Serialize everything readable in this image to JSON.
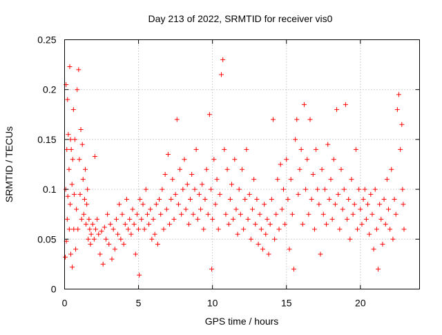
{
  "chart_data": {
    "type": "scatter",
    "title": "Day 213 of 2022, SRMTID for receiver vis0",
    "xlabel": "GPS time / hours",
    "ylabel": "SRMTID / TECUs",
    "xlim": [
      0,
      24
    ],
    "ylim": [
      0,
      0.25
    ],
    "x_ticks": [
      0,
      5,
      10,
      15,
      20
    ],
    "x_tick_labels": [
      "0",
      "5",
      "10",
      "15",
      "20"
    ],
    "y_ticks": [
      0,
      0.05,
      0.1,
      0.15,
      0.2,
      0.25
    ],
    "y_tick_labels": [
      "0",
      "0.05",
      "0.1",
      "0.15",
      "0.2",
      "0.25"
    ],
    "grid": true,
    "marker": "+",
    "color": "#ff0000",
    "series": [
      {
        "name": "vis0",
        "points": [
          [
            0.05,
            0.032
          ],
          [
            0.08,
            0.1
          ],
          [
            0.1,
            0.205
          ],
          [
            0.12,
            0.048
          ],
          [
            0.15,
            0.14
          ],
          [
            0.18,
            0.07
          ],
          [
            0.2,
            0.19
          ],
          [
            0.22,
            0.093
          ],
          [
            0.25,
            0.155
          ],
          [
            0.3,
            0.12
          ],
          [
            0.32,
            0.06
          ],
          [
            0.35,
            0.223
          ],
          [
            0.38,
            0.085
          ],
          [
            0.4,
            0.15
          ],
          [
            0.42,
            0.035
          ],
          [
            0.45,
            0.14
          ],
          [
            0.5,
            0.105
          ],
          [
            0.52,
            0.022
          ],
          [
            0.55,
            0.13
          ],
          [
            0.6,
            0.18
          ],
          [
            0.62,
            0.06
          ],
          [
            0.65,
            0.095
          ],
          [
            0.7,
            0.15
          ],
          [
            0.75,
            0.04
          ],
          [
            0.8,
            0.08
          ],
          [
            0.85,
            0.2
          ],
          [
            0.9,
            0.06
          ],
          [
            0.95,
            0.22
          ],
          [
            1.0,
            0.13
          ],
          [
            1.05,
            0.095
          ],
          [
            1.1,
            0.16
          ],
          [
            1.15,
            0.07
          ],
          [
            1.2,
            0.145
          ],
          [
            1.25,
            0.11
          ],
          [
            1.3,
            0.075
          ],
          [
            1.35,
            0.09
          ],
          [
            1.4,
            0.12
          ],
          [
            1.45,
            0.065
          ],
          [
            1.5,
            0.085
          ],
          [
            1.55,
            0.1
          ],
          [
            1.6,
            0.05
          ],
          [
            1.65,
            0.07
          ],
          [
            1.7,
            0.06
          ],
          [
            1.75,
            0.045
          ],
          [
            1.8,
            0.055
          ],
          [
            1.9,
            0.065
          ],
          [
            2.0,
            0.05
          ],
          [
            2.05,
            0.133
          ],
          [
            2.1,
            0.06
          ],
          [
            2.2,
            0.07
          ],
          [
            2.3,
            0.055
          ],
          [
            2.4,
            0.035
          ],
          [
            2.5,
            0.058
          ],
          [
            2.6,
            0.025
          ],
          [
            2.7,
            0.062
          ],
          [
            2.8,
            0.05
          ],
          [
            2.9,
            0.075
          ],
          [
            3.0,
            0.045
          ],
          [
            3.1,
            0.065
          ],
          [
            3.2,
            0.03
          ],
          [
            3.3,
            0.06
          ],
          [
            3.4,
            0.04
          ],
          [
            3.5,
            0.07
          ],
          [
            3.6,
            0.055
          ],
          [
            3.7,
            0.085
          ],
          [
            3.8,
            0.05
          ],
          [
            3.9,
            0.075
          ],
          [
            4.0,
            0.045
          ],
          [
            4.1,
            0.065
          ],
          [
            4.2,
            0.09
          ],
          [
            4.3,
            0.06
          ],
          [
            4.4,
            0.07
          ],
          [
            4.5,
            0.055
          ],
          [
            4.6,
            0.08
          ],
          [
            4.7,
            0.065
          ],
          [
            4.8,
            0.035
          ],
          [
            4.9,
            0.075
          ],
          [
            5.0,
            0.06
          ],
          [
            5.05,
            0.014
          ],
          [
            5.1,
            0.09
          ],
          [
            5.2,
            0.07
          ],
          [
            5.3,
            0.085
          ],
          [
            5.4,
            0.06
          ],
          [
            5.5,
            0.1
          ],
          [
            5.6,
            0.075
          ],
          [
            5.7,
            0.065
          ],
          [
            5.8,
            0.08
          ],
          [
            5.9,
            0.05
          ],
          [
            6.0,
            0.07
          ],
          [
            6.1,
            0.055
          ],
          [
            6.2,
            0.085
          ],
          [
            6.3,
            0.045
          ],
          [
            6.4,
            0.09
          ],
          [
            6.5,
            0.075
          ],
          [
            6.6,
            0.1
          ],
          [
            6.7,
            0.06
          ],
          [
            6.8,
            0.115
          ],
          [
            6.9,
            0.08
          ],
          [
            7.0,
            0.135
          ],
          [
            7.1,
            0.065
          ],
          [
            7.2,
            0.09
          ],
          [
            7.3,
            0.11
          ],
          [
            7.4,
            0.07
          ],
          [
            7.5,
            0.095
          ],
          [
            7.6,
            0.17
          ],
          [
            7.7,
            0.085
          ],
          [
            7.8,
            0.12
          ],
          [
            7.9,
            0.075
          ],
          [
            8.0,
            0.1
          ],
          [
            8.1,
            0.13
          ],
          [
            8.2,
            0.08
          ],
          [
            8.3,
            0.105
          ],
          [
            8.4,
            0.065
          ],
          [
            8.5,
            0.09
          ],
          [
            8.6,
            0.115
          ],
          [
            8.7,
            0.075
          ],
          [
            8.8,
            0.1
          ],
          [
            8.9,
            0.14
          ],
          [
            9.0,
            0.07
          ],
          [
            9.1,
            0.095
          ],
          [
            9.2,
            0.08
          ],
          [
            9.3,
            0.105
          ],
          [
            9.4,
            0.06
          ],
          [
            9.5,
            0.09
          ],
          [
            9.6,
            0.12
          ],
          [
            9.7,
            0.075
          ],
          [
            9.8,
            0.175
          ],
          [
            9.9,
            0.1
          ],
          [
            9.95,
            0.02
          ],
          [
            10.0,
            0.07
          ],
          [
            10.1,
            0.13
          ],
          [
            10.2,
            0.085
          ],
          [
            10.3,
            0.11
          ],
          [
            10.4,
            0.06
          ],
          [
            10.5,
            0.095
          ],
          [
            10.6,
            0.215
          ],
          [
            10.7,
            0.23
          ],
          [
            10.8,
            0.14
          ],
          [
            10.9,
            0.075
          ],
          [
            11.0,
            0.12
          ],
          [
            11.1,
            0.065
          ],
          [
            11.2,
            0.09
          ],
          [
            11.3,
            0.105
          ],
          [
            11.4,
            0.07
          ],
          [
            11.5,
            0.13
          ],
          [
            11.6,
            0.08
          ],
          [
            11.7,
            0.055
          ],
          [
            11.8,
            0.1
          ],
          [
            11.9,
            0.075
          ],
          [
            12.0,
            0.12
          ],
          [
            12.1,
            0.06
          ],
          [
            12.2,
            0.09
          ],
          [
            12.3,
            0.14
          ],
          [
            12.4,
            0.07
          ],
          [
            12.5,
            0.095
          ],
          [
            12.6,
            0.05
          ],
          [
            12.7,
            0.08
          ],
          [
            12.8,
            0.11
          ],
          [
            12.9,
            0.065
          ],
          [
            13.0,
            0.09
          ],
          [
            13.1,
            0.045
          ],
          [
            13.2,
            0.075
          ],
          [
            13.3,
            0.06
          ],
          [
            13.4,
            0.04
          ],
          [
            13.5,
            0.085
          ],
          [
            13.6,
            0.055
          ],
          [
            13.7,
            0.07
          ],
          [
            13.8,
            0.035
          ],
          [
            13.9,
            0.065
          ],
          [
            14.0,
            0.09
          ],
          [
            14.1,
            0.17
          ],
          [
            14.2,
            0.05
          ],
          [
            14.3,
            0.075
          ],
          [
            14.4,
            0.11
          ],
          [
            14.5,
            0.06
          ],
          [
            14.6,
            0.125
          ],
          [
            14.7,
            0.08
          ],
          [
            14.8,
            0.1
          ],
          [
            14.9,
            0.065
          ],
          [
            15.0,
            0.13
          ],
          [
            15.1,
            0.09
          ],
          [
            15.2,
            0.04
          ],
          [
            15.3,
            0.11
          ],
          [
            15.4,
            0.075
          ],
          [
            15.5,
            0.02
          ],
          [
            15.6,
            0.15
          ],
          [
            15.7,
            0.17
          ],
          [
            15.8,
            0.095
          ],
          [
            15.9,
            0.12
          ],
          [
            16.0,
            0.14
          ],
          [
            16.1,
            0.065
          ],
          [
            16.2,
            0.185
          ],
          [
            16.3,
            0.1
          ],
          [
            16.4,
            0.13
          ],
          [
            16.5,
            0.075
          ],
          [
            16.6,
            0.17
          ],
          [
            16.7,
            0.09
          ],
          [
            16.8,
            0.115
          ],
          [
            16.9,
            0.06
          ],
          [
            17.0,
            0.14
          ],
          [
            17.1,
            0.1
          ],
          [
            17.2,
            0.085
          ],
          [
            17.3,
            0.035
          ],
          [
            17.4,
            0.12
          ],
          [
            17.5,
            0.075
          ],
          [
            17.6,
            0.1
          ],
          [
            17.7,
            0.065
          ],
          [
            17.8,
            0.145
          ],
          [
            17.9,
            0.09
          ],
          [
            18.0,
            0.11
          ],
          [
            18.1,
            0.07
          ],
          [
            18.2,
            0.13
          ],
          [
            18.3,
            0.085
          ],
          [
            18.4,
            0.18
          ],
          [
            18.5,
            0.095
          ],
          [
            18.6,
            0.06
          ],
          [
            18.7,
            0.12
          ],
          [
            18.8,
            0.08
          ],
          [
            18.9,
            0.1
          ],
          [
            19.0,
            0.185
          ],
          [
            19.1,
            0.07
          ],
          [
            19.2,
            0.09
          ],
          [
            19.3,
            0.05
          ],
          [
            19.4,
            0.11
          ],
          [
            19.5,
            0.075
          ],
          [
            19.6,
            0.085
          ],
          [
            19.7,
            0.14
          ],
          [
            19.8,
            0.06
          ],
          [
            19.9,
            0.1
          ],
          [
            20.0,
            0.08
          ],
          [
            20.1,
            0.065
          ],
          [
            20.2,
            0.09
          ],
          [
            20.3,
            0.1
          ],
          [
            20.4,
            0.07
          ],
          [
            20.5,
            0.085
          ],
          [
            20.6,
            0.055
          ],
          [
            20.7,
            0.095
          ],
          [
            20.8,
            0.075
          ],
          [
            20.9,
            0.04
          ],
          [
            21.0,
            0.1
          ],
          [
            21.1,
            0.06
          ],
          [
            21.2,
            0.02
          ],
          [
            21.3,
            0.085
          ],
          [
            21.4,
            0.07
          ],
          [
            21.5,
            0.045
          ],
          [
            21.6,
            0.09
          ],
          [
            21.7,
            0.065
          ],
          [
            21.8,
            0.11
          ],
          [
            21.9,
            0.08
          ],
          [
            22.0,
            0.06
          ],
          [
            22.1,
            0.12
          ],
          [
            22.2,
            0.05
          ],
          [
            22.3,
            0.09
          ],
          [
            22.4,
            0.075
          ],
          [
            22.5,
            0.18
          ],
          [
            22.6,
            0.195
          ],
          [
            22.7,
            0.14
          ],
          [
            22.8,
            0.165
          ],
          [
            22.85,
            0.1
          ],
          [
            22.9,
            0.085
          ],
          [
            22.95,
            0.06
          ]
        ]
      }
    ]
  }
}
